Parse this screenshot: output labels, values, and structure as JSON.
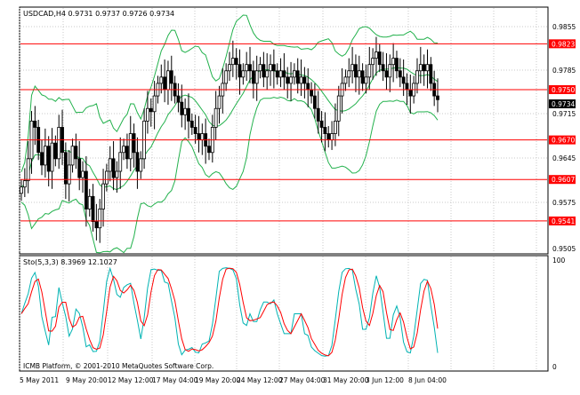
{
  "main_chart": {
    "symbol_header": "USDCAD,H4",
    "ohlc": [
      "0.9731",
      "0.9737",
      "0.9726",
      "0.9734"
    ],
    "price_ticks": [
      "0.9855",
      "0.9785",
      "0.9715",
      "0.9645",
      "0.9575",
      "0.9505"
    ],
    "levels": [
      {
        "label": "0.9823",
        "price": 0.9823
      },
      {
        "label": "0.9750",
        "price": 0.975
      },
      {
        "label": "0.9670",
        "price": 0.967
      },
      {
        "label": "0.9607",
        "price": 0.9607
      },
      {
        "label": "0.9541",
        "price": 0.9541
      }
    ],
    "current_price_label": "0.9734",
    "level_color": "#ff0000",
    "band_color": "#22b14c"
  },
  "indicator": {
    "header": "Sto(5,3,3) 8.3969 12.1027",
    "ticks": [
      "100",
      "0"
    ],
    "main_color": "#00b3b3",
    "signal_color": "#ff0000",
    "watermark": "ICMB Platform, © 2001-2010 MetaQuotes Software Corp."
  },
  "time_axis": {
    "labels": [
      "5 May 2011",
      "9 May 20:00",
      "12 May 12:00",
      "17 May 04:00",
      "19 May 20:00",
      "24 May 12:00",
      "27 May 04:00",
      "31 May 20:00",
      "3 Jun 12:00",
      "8 Jun 04:00"
    ]
  },
  "chart_data": {
    "type": "candlestick",
    "symbol": "USDCAD",
    "timeframe": "H4",
    "price_range": [
      0.949,
      0.988
    ],
    "closes": [
      0.9595,
      0.9605,
      0.964,
      0.97,
      0.969,
      0.965,
      0.963,
      0.966,
      0.962,
      0.9665,
      0.964,
      0.969,
      0.965,
      0.96,
      0.963,
      0.966,
      0.964,
      0.961,
      0.962,
      0.956,
      0.958,
      0.954,
      0.953,
      0.956,
      0.96,
      0.962,
      0.964,
      0.961,
      0.962,
      0.965,
      0.966,
      0.964,
      0.968,
      0.965,
      0.962,
      0.964,
      0.97,
      0.972,
      0.9715,
      0.974,
      0.976,
      0.977,
      0.975,
      0.978,
      0.976,
      0.974,
      0.973,
      0.971,
      0.972,
      0.97,
      0.969,
      0.968,
      0.967,
      0.968,
      0.966,
      0.965,
      0.969,
      0.972,
      0.974,
      0.976,
      0.978,
      0.979,
      0.98,
      0.979,
      0.977,
      0.978,
      0.979,
      0.978,
      0.976,
      0.978,
      0.979,
      0.977,
      0.978,
      0.979,
      0.978,
      0.977,
      0.978,
      0.977,
      0.976,
      0.977,
      0.978,
      0.976,
      0.977,
      0.976,
      0.975,
      0.974,
      0.972,
      0.97,
      0.969,
      0.968,
      0.967,
      0.968,
      0.97,
      0.974,
      0.976,
      0.977,
      0.978,
      0.979,
      0.977,
      0.978,
      0.976,
      0.977,
      0.979,
      0.98,
      0.981,
      0.979,
      0.978,
      0.977,
      0.979,
      0.98,
      0.978,
      0.977,
      0.976,
      0.975,
      0.974,
      0.976,
      0.978,
      0.979,
      0.978,
      0.979,
      0.976,
      0.974,
      0.9734
    ]
  }
}
